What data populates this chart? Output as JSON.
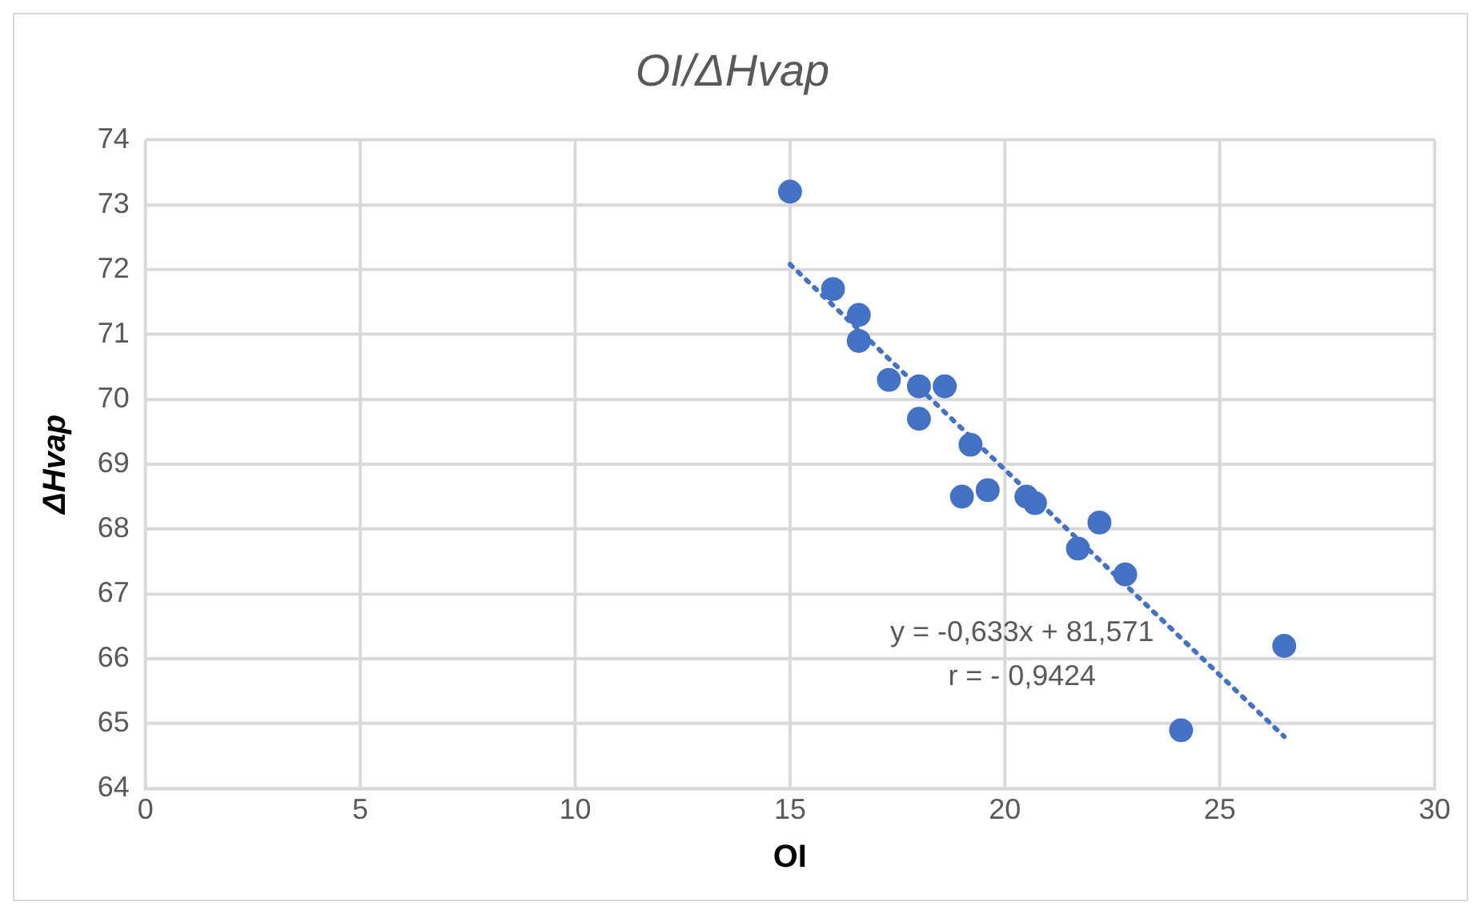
{
  "chart_data": {
    "type": "scatter",
    "title": "OI/ΔHvap",
    "xlabel": "OI",
    "ylabel": "ΔHvap",
    "xlim": [
      0,
      30
    ],
    "xticks": [
      0,
      5,
      10,
      15,
      20,
      25,
      30
    ],
    "ylim": [
      64,
      74
    ],
    "yticks": [
      64,
      65,
      66,
      67,
      68,
      69,
      70,
      71,
      72,
      73,
      74
    ],
    "grid": true,
    "marker": "circle",
    "series": [
      {
        "color": "#4472c4",
        "x": [
          15.0,
          16.0,
          16.6,
          16.6,
          17.3,
          18.0,
          18.6,
          18.0,
          19.2,
          19.0,
          19.6,
          20.5,
          20.7,
          21.7,
          22.2,
          22.8,
          26.5,
          24.1
        ],
        "values": [
          73.2,
          71.7,
          71.3,
          70.9,
          70.3,
          70.2,
          70.2,
          69.7,
          69.3,
          68.5,
          68.6,
          68.5,
          68.4,
          67.7,
          68.1,
          67.3,
          66.2,
          64.9
        ]
      },
      {
        "type": "line",
        "color": "#4472c4",
        "line_style": "dotted",
        "marker": "none",
        "x": [
          15.0,
          26.5
        ],
        "values": [
          72.08,
          64.8
        ]
      }
    ],
    "annotations": [
      "y = -0,633x + 81,571",
      "r = - 0,9424"
    ]
  }
}
